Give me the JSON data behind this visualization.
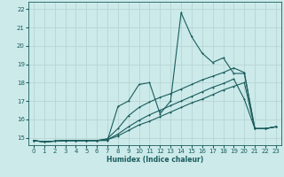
{
  "xlabel": "Humidex (Indice chaleur)",
  "bg_color": "#cceaea",
  "grid_color": "#b8d4d4",
  "line_color": "#1a5c5c",
  "xlim": [
    -0.5,
    23.5
  ],
  "ylim": [
    14.6,
    22.4
  ],
  "xticks": [
    0,
    1,
    2,
    3,
    4,
    5,
    6,
    7,
    8,
    9,
    10,
    11,
    12,
    13,
    14,
    15,
    16,
    17,
    18,
    19,
    20,
    21,
    22,
    23
  ],
  "yticks": [
    15,
    16,
    17,
    18,
    19,
    20,
    21,
    22
  ],
  "line1_x": [
    0,
    1,
    2,
    3,
    4,
    5,
    6,
    7,
    8,
    9,
    10,
    11,
    12,
    13,
    14,
    15,
    16,
    17,
    18,
    19,
    20,
    21,
    22,
    23
  ],
  "line1_y": [
    14.85,
    14.78,
    14.82,
    14.85,
    14.85,
    14.85,
    14.85,
    14.85,
    16.7,
    17.0,
    17.9,
    18.0,
    16.3,
    17.0,
    21.8,
    20.5,
    19.6,
    19.1,
    19.35,
    18.5,
    18.5,
    15.5,
    15.5,
    15.6
  ],
  "line2_x": [
    0,
    1,
    2,
    3,
    4,
    5,
    6,
    7,
    8,
    9,
    10,
    11,
    12,
    13,
    14,
    15,
    16,
    17,
    18,
    19,
    20,
    21,
    22,
    23
  ],
  "line2_y": [
    14.85,
    14.78,
    14.82,
    14.85,
    14.85,
    14.85,
    14.85,
    14.9,
    15.1,
    15.4,
    15.7,
    15.9,
    16.15,
    16.4,
    16.65,
    16.9,
    17.1,
    17.35,
    17.6,
    17.8,
    18.0,
    15.5,
    15.5,
    15.6
  ],
  "line3_x": [
    0,
    1,
    2,
    3,
    4,
    5,
    6,
    7,
    8,
    9,
    10,
    11,
    12,
    13,
    14,
    15,
    16,
    17,
    18,
    19,
    20,
    21,
    22,
    23
  ],
  "line3_y": [
    14.85,
    14.78,
    14.82,
    14.85,
    14.85,
    14.85,
    14.85,
    14.9,
    15.2,
    15.6,
    15.95,
    16.25,
    16.5,
    16.75,
    17.0,
    17.25,
    17.5,
    17.75,
    17.95,
    18.2,
    17.1,
    15.5,
    15.5,
    15.6
  ],
  "line4_x": [
    0,
    1,
    2,
    3,
    4,
    5,
    6,
    7,
    8,
    9,
    10,
    11,
    12,
    13,
    14,
    15,
    16,
    17,
    18,
    19,
    20,
    21,
    22,
    23
  ],
  "line4_y": [
    14.85,
    14.78,
    14.82,
    14.85,
    14.85,
    14.85,
    14.85,
    14.95,
    15.5,
    16.2,
    16.65,
    16.95,
    17.2,
    17.4,
    17.65,
    17.9,
    18.15,
    18.35,
    18.55,
    18.8,
    18.55,
    15.5,
    15.5,
    15.6
  ]
}
